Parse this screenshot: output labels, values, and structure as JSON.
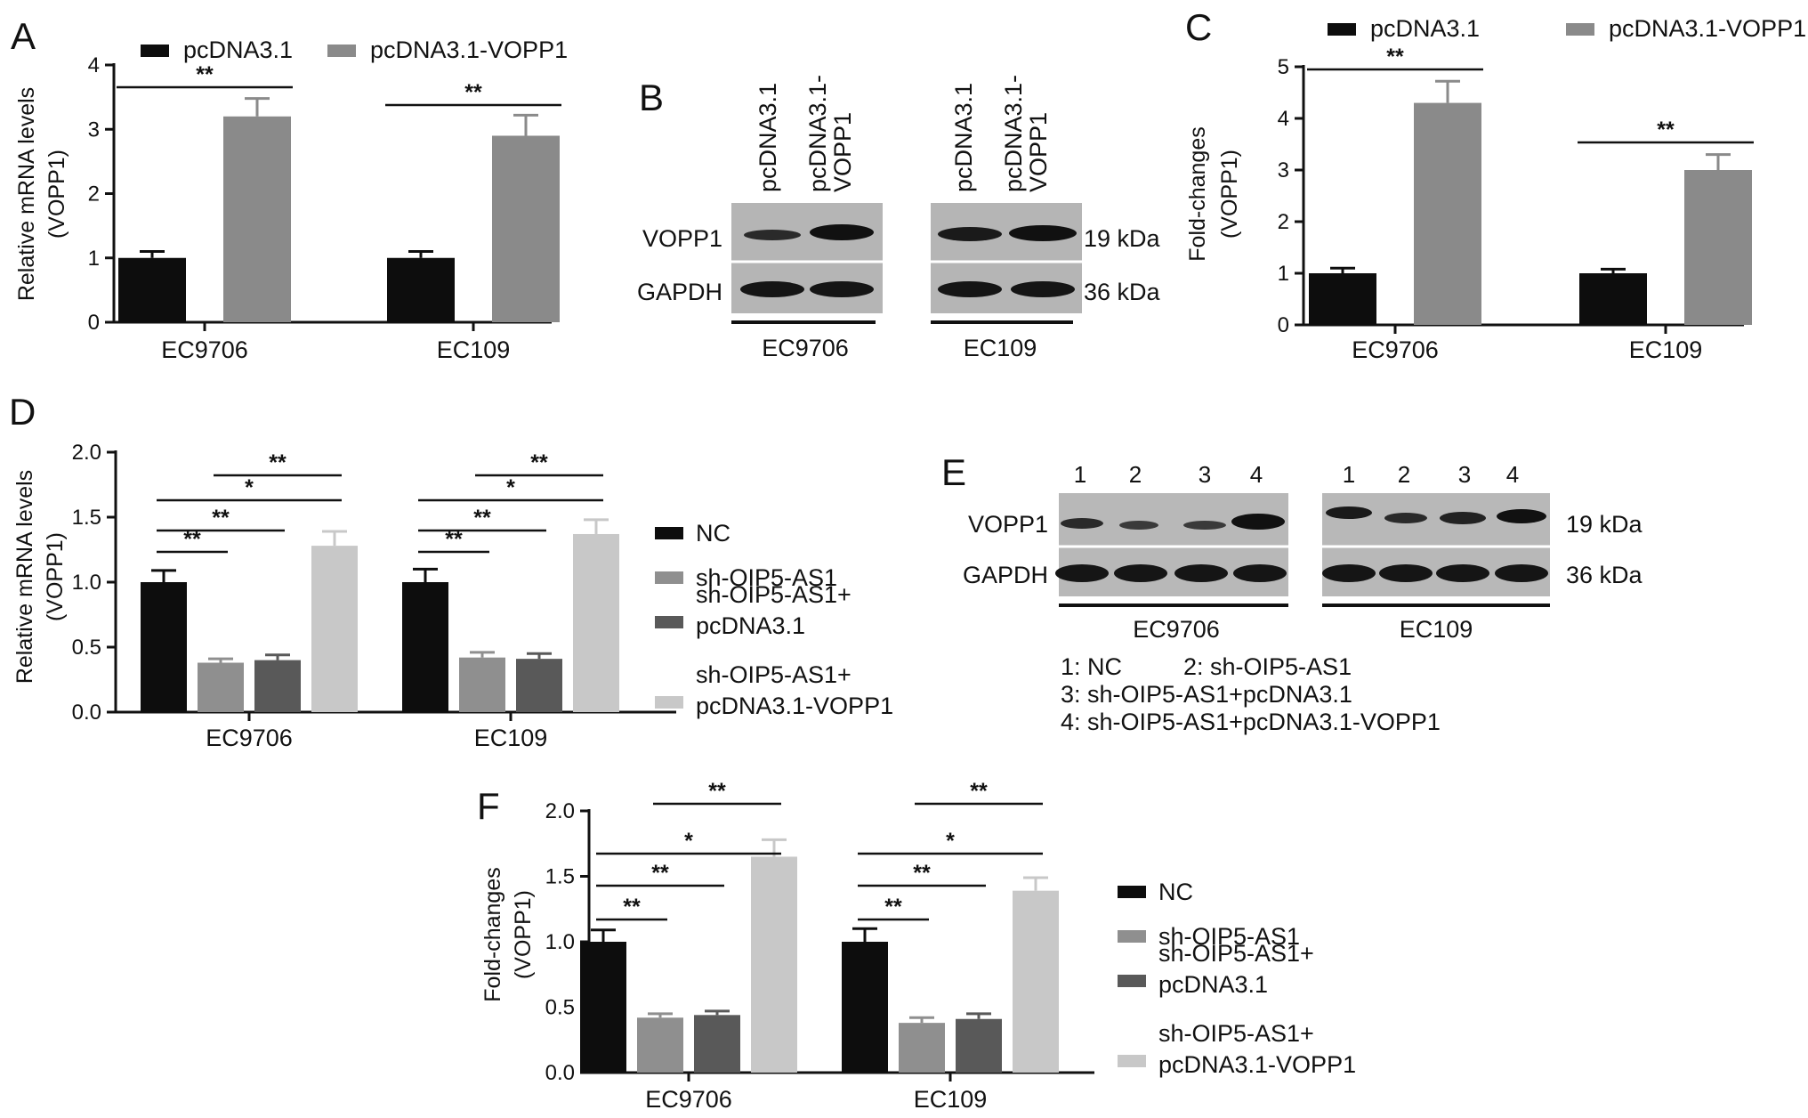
{
  "colors": {
    "black": "#0d0d0d",
    "gray": "#8a8a8a",
    "mid_gray": "#8f8f8f",
    "dark_gray": "#595959",
    "light_gray": "#c8c8c8"
  },
  "chart_data": [
    {
      "id": "A",
      "panel": "A",
      "type": "bar",
      "categories": [
        "EC9706",
        "EC109"
      ],
      "series": [
        {
          "name": "pcDNA3.1",
          "values": [
            1.0,
            1.0
          ],
          "errors": [
            0.1,
            0.1
          ]
        },
        {
          "name": "pcDNA3.1-VOPP1",
          "values": [
            3.2,
            2.9
          ],
          "errors": [
            0.28,
            0.32
          ]
        }
      ],
      "ylabel": "Relative mRNA levels (VOPP1)",
      "ylabel_lines": [
        "Relative mRNA levels",
        "(VOPP1)"
      ],
      "ylim": [
        0,
        4
      ],
      "yticks": [
        "0",
        "1",
        "2",
        "3",
        "4"
      ],
      "significance": [
        {
          "group": 0,
          "from": 0,
          "to": 1,
          "label": "**",
          "level": 0
        },
        {
          "group": 1,
          "from": 0,
          "to": 1,
          "label": "**",
          "level": 0
        }
      ],
      "legend": "top"
    },
    {
      "id": "C",
      "panel": "C",
      "type": "bar",
      "categories": [
        "EC9706",
        "EC109"
      ],
      "series": [
        {
          "name": "pcDNA3.1",
          "values": [
            1.0,
            1.0
          ],
          "errors": [
            0.1,
            0.08
          ]
        },
        {
          "name": "pcDNA3.1-VOPP1",
          "values": [
            4.3,
            3.0
          ],
          "errors": [
            0.42,
            0.3
          ]
        }
      ],
      "ylabel": "Fold-changes (VOPP1)",
      "ylabel_lines": [
        "Fold-changes",
        "(VOPP1)"
      ],
      "ylim": [
        0,
        5
      ],
      "yticks": [
        "0",
        "1",
        "2",
        "3",
        "4",
        "5"
      ],
      "significance": [
        {
          "group": 0,
          "from": 0,
          "to": 1,
          "label": "**",
          "level": 0
        },
        {
          "group": 1,
          "from": 0,
          "to": 1,
          "label": "**",
          "level": 0
        }
      ],
      "legend": "top"
    },
    {
      "id": "D",
      "panel": "D",
      "type": "bar",
      "categories": [
        "EC9706",
        "EC109"
      ],
      "series": [
        {
          "name": "NC",
          "values": [
            1.0,
            1.0
          ],
          "errors": [
            0.09,
            0.1
          ]
        },
        {
          "name": "sh-OIP5-AS1",
          "values": [
            0.38,
            0.42
          ],
          "errors": [
            0.03,
            0.04
          ]
        },
        {
          "name": "sh-OIP5-AS1+ pcDNA3.1",
          "values": [
            0.4,
            0.41
          ],
          "errors": [
            0.04,
            0.04
          ]
        },
        {
          "name": "sh-OIP5-AS1+ pcDNA3.1-VOPP1",
          "values": [
            1.28,
            1.37
          ],
          "errors": [
            0.11,
            0.11
          ]
        }
      ],
      "ylabel": "Relative mRNA levels (VOPP1)",
      "ylabel_lines": [
        "Relative mRNA levels",
        "(VOPP1)"
      ],
      "ylim": [
        0,
        2.0
      ],
      "yticks": [
        "0.0",
        "0.5",
        "1.0",
        "1.5",
        "2.0"
      ],
      "significance": [
        {
          "group": 0,
          "from": 0,
          "to": 1,
          "label": "**",
          "level": 0
        },
        {
          "group": 0,
          "from": 0,
          "to": 2,
          "label": "**",
          "level": 1
        },
        {
          "group": 0,
          "from": 0,
          "to": 3,
          "label": "*",
          "level": 2
        },
        {
          "group": 0,
          "from": 1,
          "to": 3,
          "label": "**",
          "level": 3
        },
        {
          "group": 1,
          "from": 0,
          "to": 1,
          "label": "**",
          "level": 0
        },
        {
          "group": 1,
          "from": 0,
          "to": 2,
          "label": "**",
          "level": 1
        },
        {
          "group": 1,
          "from": 0,
          "to": 3,
          "label": "*",
          "level": 2
        },
        {
          "group": 1,
          "from": 1,
          "to": 3,
          "label": "**",
          "level": 3
        }
      ],
      "legend": "right"
    },
    {
      "id": "F",
      "panel": "F",
      "type": "bar",
      "categories": [
        "EC9706",
        "EC109"
      ],
      "series": [
        {
          "name": "NC",
          "values": [
            1.0,
            1.0
          ],
          "errors": [
            0.09,
            0.1
          ]
        },
        {
          "name": "sh-OIP5-AS1",
          "values": [
            0.42,
            0.38
          ],
          "errors": [
            0.03,
            0.04
          ]
        },
        {
          "name": "sh-OIP5-AS1+ pcDNA3.1",
          "values": [
            0.44,
            0.41
          ],
          "errors": [
            0.03,
            0.04
          ]
        },
        {
          "name": "sh-OIP5-AS1+ pcDNA3.1-VOPP1",
          "values": [
            1.65,
            1.39
          ],
          "errors": [
            0.13,
            0.1
          ]
        }
      ],
      "ylabel": "Fold-changes (VOPP1)",
      "ylabel_lines": [
        "Fold-changes",
        "(VOPP1)"
      ],
      "ylim": [
        0,
        2.0
      ],
      "yticks": [
        "0.0",
        "0.5",
        "1.0",
        "1.5",
        "2.0"
      ],
      "significance": [
        {
          "group": 0,
          "from": 0,
          "to": 1,
          "label": "**",
          "level": 0
        },
        {
          "group": 0,
          "from": 0,
          "to": 2,
          "label": "**",
          "level": 1
        },
        {
          "group": 0,
          "from": 0,
          "to": 3,
          "label": "*",
          "level": 2
        },
        {
          "group": 0,
          "from": 1,
          "to": 3,
          "label": "**",
          "level": 3
        },
        {
          "group": 1,
          "from": 0,
          "to": 1,
          "label": "**",
          "level": 0
        },
        {
          "group": 1,
          "from": 0,
          "to": 2,
          "label": "**",
          "level": 1
        },
        {
          "group": 1,
          "from": 0,
          "to": 3,
          "label": "*",
          "level": 2
        },
        {
          "group": 1,
          "from": 1,
          "to": 3,
          "label": "**",
          "level": 3
        }
      ],
      "legend": "right"
    }
  ],
  "blot_b": {
    "letter": "B",
    "lanes": [
      "pcDNA3.1",
      "pcDNA3.1-",
      "VOPP1"
    ],
    "rows": [
      "VOPP1",
      "GAPDH"
    ],
    "sizes": [
      "19 kDa",
      "36 kDa"
    ],
    "groups": [
      "EC9706",
      "EC109"
    ]
  },
  "blot_e": {
    "letter": "E",
    "lane_numbers": [
      "1",
      "2",
      "3",
      "4"
    ],
    "rows": [
      "VOPP1",
      "GAPDH"
    ],
    "sizes": [
      "19 kDa",
      "36 kDa"
    ],
    "groups": [
      "EC9706",
      "EC109"
    ],
    "key_lines": [
      "1: NC",
      "2: sh-OIP5-AS1",
      "3: sh-OIP5-AS1+pcDNA3.1",
      "4: sh-OIP5-AS1+pcDNA3.1-VOPP1"
    ]
  }
}
